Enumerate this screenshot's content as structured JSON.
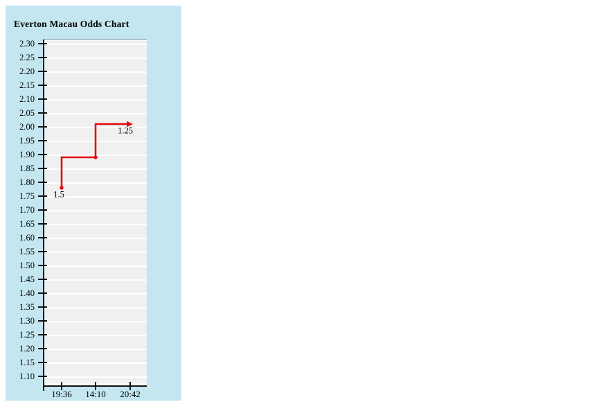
{
  "panel": {
    "title": "Everton Macau Odds Chart"
  },
  "colors": {
    "panel_bg": "#c4e6f0",
    "plot_bg": "#f0f0f0",
    "grid": "#ffffff",
    "axis": "#111111",
    "series_red": "#e00b0b",
    "text": "#000000",
    "plot_top_border": "#9a9a9a"
  },
  "chart_data": {
    "type": "line",
    "subtype": "step-line (vertical-then-horizontal)",
    "title": "Everton Macau Odds Chart",
    "xlabel": "",
    "ylabel": "",
    "x": [
      "19:36",
      "14:10",
      "20:42"
    ],
    "series": [
      {
        "name": "odds",
        "values": [
          1.78,
          1.89,
          2.01
        ],
        "color": "#e00b0b",
        "markers": [
          "dot",
          "dot",
          "arrow-right"
        ]
      }
    ],
    "annotations": [
      {
        "text": "1.5",
        "at_index": 0
      },
      {
        "text": "1.25",
        "at_index": 2
      }
    ],
    "ylim": [
      1.1,
      2.3
    ],
    "y_tick_step": 0.05,
    "y_ticks": [
      "2.30",
      "2.25",
      "2.20",
      "2.15",
      "2.10",
      "2.05",
      "2.00",
      "1.95",
      "1.90",
      "1.85",
      "1.80",
      "1.75",
      "1.70",
      "1.65",
      "1.60",
      "1.55",
      "1.50",
      "1.45",
      "1.40",
      "1.35",
      "1.30",
      "1.25",
      "1.20",
      "1.15",
      "1.10"
    ],
    "grid": "horizontal white lines on light-gray plot",
    "legend": "none"
  }
}
